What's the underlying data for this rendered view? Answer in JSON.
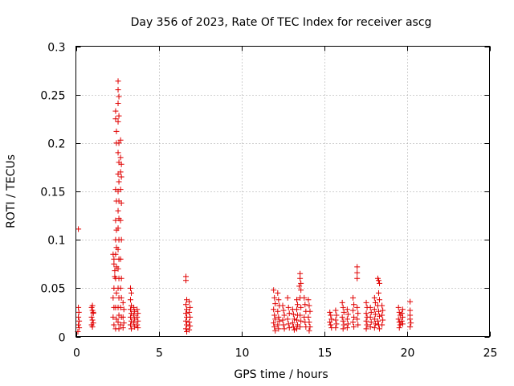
{
  "chart_data": {
    "type": "scatter",
    "title": "Day 356 of 2023, Rate Of TEC Index for receiver ascg",
    "xlabel": "GPS time / hours",
    "ylabel": "ROTI / TECUs",
    "xlim": [
      0,
      25
    ],
    "ylim": [
      0,
      0.3
    ],
    "xticks": [
      0,
      5,
      10,
      15,
      20,
      25
    ],
    "xtick_labels": [
      "0",
      "5",
      "10",
      "15",
      "20",
      "25"
    ],
    "yticks": [
      0,
      0.05,
      0.1,
      0.15,
      0.2,
      0.25,
      0.3
    ],
    "ytick_labels": [
      "0",
      "0.05",
      "0.1",
      "0.15",
      "0.2",
      "0.25",
      "0.3"
    ],
    "grid": true,
    "marker": "+",
    "color": "#e00000",
    "series": [
      {
        "name": "ROTI",
        "points": [
          [
            0.15,
            0.111
          ],
          [
            0.15,
            0.03
          ],
          [
            0.18,
            0.025
          ],
          [
            0.15,
            0.02
          ],
          [
            0.2,
            0.016
          ],
          [
            0.15,
            0.012
          ],
          [
            0.2,
            0.009
          ],
          [
            0.12,
            0.005
          ],
          [
            0.95,
            0.03
          ],
          [
            1.0,
            0.027
          ],
          [
            1.05,
            0.024
          ],
          [
            0.95,
            0.02
          ],
          [
            1.0,
            0.017
          ],
          [
            1.05,
            0.014
          ],
          [
            0.95,
            0.012
          ],
          [
            1.0,
            0.01
          ],
          [
            1.05,
            0.025
          ],
          [
            1.0,
            0.032
          ],
          [
            2.25,
            0.085
          ],
          [
            2.3,
            0.08
          ],
          [
            2.3,
            0.075
          ],
          [
            2.35,
            0.068
          ],
          [
            2.35,
            0.062
          ],
          [
            2.3,
            0.05
          ],
          [
            2.25,
            0.04
          ],
          [
            2.3,
            0.03
          ],
          [
            2.25,
            0.02
          ],
          [
            2.3,
            0.012
          ],
          [
            2.4,
            0.233
          ],
          [
            2.4,
            0.225
          ],
          [
            2.45,
            0.212
          ],
          [
            2.45,
            0.2
          ],
          [
            2.4,
            0.152
          ],
          [
            2.45,
            0.14
          ],
          [
            2.4,
            0.12
          ],
          [
            2.45,
            0.11
          ],
          [
            2.4,
            0.1
          ],
          [
            2.45,
            0.092
          ],
          [
            2.4,
            0.085
          ],
          [
            2.45,
            0.072
          ],
          [
            2.4,
            0.06
          ],
          [
            2.45,
            0.045
          ],
          [
            2.4,
            0.03
          ],
          [
            2.45,
            0.018
          ],
          [
            2.4,
            0.008
          ],
          [
            2.55,
            0.264
          ],
          [
            2.55,
            0.255
          ],
          [
            2.6,
            0.248
          ],
          [
            2.55,
            0.241
          ],
          [
            2.6,
            0.228
          ],
          [
            2.55,
            0.222
          ],
          [
            2.6,
            0.2
          ],
          [
            2.55,
            0.19
          ],
          [
            2.6,
            0.18
          ],
          [
            2.55,
            0.168
          ],
          [
            2.6,
            0.16
          ],
          [
            2.55,
            0.15
          ],
          [
            2.6,
            0.14
          ],
          [
            2.55,
            0.13
          ],
          [
            2.6,
            0.122
          ],
          [
            2.55,
            0.112
          ],
          [
            2.6,
            0.1
          ],
          [
            2.55,
            0.09
          ],
          [
            2.6,
            0.08
          ],
          [
            2.55,
            0.07
          ],
          [
            2.6,
            0.06
          ],
          [
            2.55,
            0.05
          ],
          [
            2.6,
            0.04
          ],
          [
            2.55,
            0.03
          ],
          [
            2.6,
            0.022
          ],
          [
            2.55,
            0.015
          ],
          [
            2.6,
            0.008
          ],
          [
            2.7,
            0.203
          ],
          [
            2.7,
            0.185
          ],
          [
            2.75,
            0.178
          ],
          [
            2.7,
            0.17
          ],
          [
            2.75,
            0.165
          ],
          [
            2.7,
            0.152
          ],
          [
            2.75,
            0.138
          ],
          [
            2.7,
            0.12
          ],
          [
            2.75,
            0.1
          ],
          [
            2.7,
            0.08
          ],
          [
            2.75,
            0.06
          ],
          [
            2.7,
            0.05
          ],
          [
            2.75,
            0.04
          ],
          [
            2.7,
            0.03
          ],
          [
            2.75,
            0.02
          ],
          [
            2.7,
            0.012
          ],
          [
            2.85,
            0.035
          ],
          [
            2.9,
            0.028
          ],
          [
            2.85,
            0.02
          ],
          [
            2.9,
            0.014
          ],
          [
            2.85,
            0.009
          ],
          [
            3.3,
            0.05
          ],
          [
            3.35,
            0.045
          ],
          [
            3.3,
            0.038
          ],
          [
            3.35,
            0.032
          ],
          [
            3.3,
            0.028
          ],
          [
            3.35,
            0.024
          ],
          [
            3.3,
            0.02
          ],
          [
            3.35,
            0.016
          ],
          [
            3.3,
            0.012
          ],
          [
            3.35,
            0.008
          ],
          [
            3.5,
            0.03
          ],
          [
            3.55,
            0.026
          ],
          [
            3.5,
            0.022
          ],
          [
            3.55,
            0.018
          ],
          [
            3.5,
            0.014
          ],
          [
            3.55,
            0.01
          ],
          [
            3.7,
            0.028
          ],
          [
            3.75,
            0.024
          ],
          [
            3.7,
            0.02
          ],
          [
            3.75,
            0.016
          ],
          [
            3.7,
            0.012
          ],
          [
            3.75,
            0.009
          ],
          [
            6.65,
            0.062
          ],
          [
            6.65,
            0.058
          ],
          [
            6.7,
            0.038
          ],
          [
            6.65,
            0.033
          ],
          [
            6.7,
            0.028
          ],
          [
            6.65,
            0.024
          ],
          [
            6.7,
            0.02
          ],
          [
            6.65,
            0.016
          ],
          [
            6.7,
            0.012
          ],
          [
            6.65,
            0.008
          ],
          [
            6.7,
            0.005
          ],
          [
            6.85,
            0.036
          ],
          [
            6.9,
            0.03
          ],
          [
            6.85,
            0.025
          ],
          [
            6.9,
            0.02
          ],
          [
            6.85,
            0.015
          ],
          [
            6.9,
            0.011
          ],
          [
            6.85,
            0.007
          ],
          [
            11.95,
            0.048
          ],
          [
            12.0,
            0.04
          ],
          [
            12.05,
            0.034
          ],
          [
            11.95,
            0.028
          ],
          [
            12.0,
            0.022
          ],
          [
            12.05,
            0.018
          ],
          [
            11.95,
            0.014
          ],
          [
            12.0,
            0.01
          ],
          [
            12.05,
            0.006
          ],
          [
            12.2,
            0.045
          ],
          [
            12.25,
            0.038
          ],
          [
            12.3,
            0.032
          ],
          [
            12.2,
            0.026
          ],
          [
            12.25,
            0.02
          ],
          [
            12.3,
            0.016
          ],
          [
            12.2,
            0.012
          ],
          [
            12.25,
            0.008
          ],
          [
            12.5,
            0.032
          ],
          [
            12.55,
            0.027
          ],
          [
            12.6,
            0.022
          ],
          [
            12.5,
            0.017
          ],
          [
            12.55,
            0.012
          ],
          [
            12.6,
            0.008
          ],
          [
            12.8,
            0.04
          ],
          [
            12.85,
            0.03
          ],
          [
            12.9,
            0.024
          ],
          [
            12.8,
            0.018
          ],
          [
            12.85,
            0.013
          ],
          [
            12.9,
            0.009
          ],
          [
            13.1,
            0.028
          ],
          [
            13.15,
            0.023
          ],
          [
            13.2,
            0.018
          ],
          [
            13.1,
            0.014
          ],
          [
            13.15,
            0.01
          ],
          [
            13.2,
            0.007
          ],
          [
            13.35,
            0.038
          ],
          [
            13.4,
            0.033
          ],
          [
            13.35,
            0.028
          ],
          [
            13.4,
            0.022
          ],
          [
            13.35,
            0.017
          ],
          [
            13.4,
            0.012
          ],
          [
            13.35,
            0.008
          ],
          [
            13.55,
            0.065
          ],
          [
            13.55,
            0.06
          ],
          [
            13.6,
            0.055
          ],
          [
            13.5,
            0.052
          ],
          [
            13.6,
            0.048
          ],
          [
            13.55,
            0.04
          ],
          [
            13.6,
            0.03
          ],
          [
            13.55,
            0.022
          ],
          [
            13.6,
            0.016
          ],
          [
            13.55,
            0.01
          ],
          [
            13.8,
            0.04
          ],
          [
            13.85,
            0.033
          ],
          [
            13.9,
            0.026
          ],
          [
            13.8,
            0.02
          ],
          [
            13.85,
            0.015
          ],
          [
            13.9,
            0.01
          ],
          [
            14.05,
            0.038
          ],
          [
            14.1,
            0.032
          ],
          [
            14.15,
            0.026
          ],
          [
            14.05,
            0.02
          ],
          [
            14.1,
            0.015
          ],
          [
            14.15,
            0.01
          ],
          [
            14.1,
            0.006
          ],
          [
            15.35,
            0.025
          ],
          [
            15.4,
            0.022
          ],
          [
            15.45,
            0.018
          ],
          [
            15.35,
            0.015
          ],
          [
            15.4,
            0.012
          ],
          [
            15.45,
            0.009
          ],
          [
            15.7,
            0.027
          ],
          [
            15.75,
            0.022
          ],
          [
            15.7,
            0.017
          ],
          [
            15.75,
            0.013
          ],
          [
            15.7,
            0.009
          ],
          [
            16.1,
            0.035
          ],
          [
            16.15,
            0.03
          ],
          [
            16.2,
            0.025
          ],
          [
            16.1,
            0.02
          ],
          [
            16.15,
            0.016
          ],
          [
            16.2,
            0.012
          ],
          [
            16.15,
            0.008
          ],
          [
            16.4,
            0.028
          ],
          [
            16.45,
            0.023
          ],
          [
            16.4,
            0.018
          ],
          [
            16.45,
            0.013
          ],
          [
            16.4,
            0.009
          ],
          [
            16.75,
            0.04
          ],
          [
            16.8,
            0.033
          ],
          [
            16.75,
            0.027
          ],
          [
            16.8,
            0.02
          ],
          [
            16.75,
            0.015
          ],
          [
            16.8,
            0.01
          ],
          [
            17.0,
            0.072
          ],
          [
            17.0,
            0.066
          ],
          [
            17.0,
            0.06
          ],
          [
            17.0,
            0.03
          ],
          [
            17.05,
            0.024
          ],
          [
            17.0,
            0.018
          ],
          [
            17.05,
            0.012
          ],
          [
            17.55,
            0.035
          ],
          [
            17.6,
            0.03
          ],
          [
            17.55,
            0.024
          ],
          [
            17.6,
            0.02
          ],
          [
            17.55,
            0.016
          ],
          [
            17.6,
            0.012
          ],
          [
            17.55,
            0.008
          ],
          [
            17.8,
            0.03
          ],
          [
            17.85,
            0.025
          ],
          [
            17.8,
            0.02
          ],
          [
            17.85,
            0.015
          ],
          [
            17.8,
            0.01
          ],
          [
            18.05,
            0.04
          ],
          [
            18.1,
            0.035
          ],
          [
            18.05,
            0.028
          ],
          [
            18.1,
            0.023
          ],
          [
            18.05,
            0.018
          ],
          [
            18.1,
            0.013
          ],
          [
            18.05,
            0.009
          ],
          [
            18.25,
            0.06
          ],
          [
            18.3,
            0.058
          ],
          [
            18.35,
            0.055
          ],
          [
            18.3,
            0.045
          ],
          [
            18.35,
            0.038
          ],
          [
            18.25,
            0.032
          ],
          [
            18.3,
            0.026
          ],
          [
            18.35,
            0.021
          ],
          [
            18.25,
            0.016
          ],
          [
            18.3,
            0.012
          ],
          [
            18.35,
            0.008
          ],
          [
            18.5,
            0.032
          ],
          [
            18.55,
            0.027
          ],
          [
            18.5,
            0.022
          ],
          [
            18.55,
            0.017
          ],
          [
            18.5,
            0.012
          ],
          [
            19.5,
            0.03
          ],
          [
            19.55,
            0.025
          ],
          [
            19.6,
            0.022
          ],
          [
            19.5,
            0.018
          ],
          [
            19.55,
            0.015
          ],
          [
            19.6,
            0.012
          ],
          [
            19.55,
            0.009
          ],
          [
            19.75,
            0.028
          ],
          [
            19.7,
            0.024
          ],
          [
            19.75,
            0.02
          ],
          [
            19.7,
            0.016
          ],
          [
            19.75,
            0.013
          ],
          [
            20.2,
            0.036
          ],
          [
            20.2,
            0.027
          ],
          [
            20.2,
            0.022
          ],
          [
            20.2,
            0.018
          ],
          [
            20.25,
            0.014
          ],
          [
            20.2,
            0.01
          ]
        ]
      }
    ]
  }
}
